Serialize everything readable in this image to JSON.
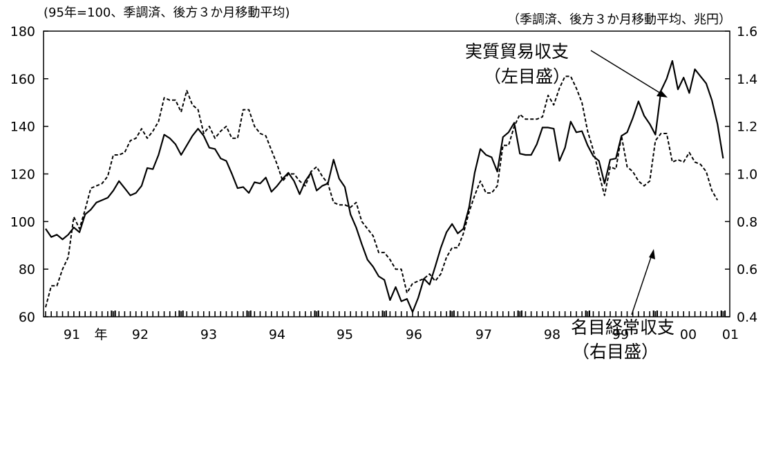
{
  "chart_data": {
    "type": "line",
    "left_axis_note": "(95年=100、季調済、後方３か月移動平均)",
    "right_axis_note": "（季調済、後方３か月移動平均、兆円）",
    "left_ticks": [
      "180",
      "160",
      "140",
      "120",
      "100",
      "80",
      "60"
    ],
    "right_ticks": [
      "1.6",
      "1.4",
      "1.2",
      "1.0",
      "0.8",
      "0.6",
      "0.4"
    ],
    "x_labels": [
      "91",
      "年",
      "92",
      "93",
      "94",
      "95",
      "96",
      "97",
      "98",
      "99",
      "00",
      "01"
    ],
    "y_left_range": [
      60,
      180
    ],
    "y_right_range": [
      0.4,
      1.6
    ],
    "grid": false,
    "series": [
      {
        "name": "実質貿易収支（左目盛）",
        "axis": "left",
        "style": "solid",
        "values": [
          97,
          93.5,
          94.5,
          92.5,
          94.5,
          97.5,
          95.5,
          103,
          105,
          108,
          109,
          110,
          113,
          117,
          114,
          111,
          112,
          115,
          122.5,
          122,
          128,
          136.5,
          135,
          132.5,
          128,
          132,
          136,
          139,
          136,
          131,
          130.5,
          126.5,
          125.5,
          120,
          114,
          114.5,
          112,
          116.5,
          116,
          118.5,
          112.5,
          115,
          118,
          120.5,
          117,
          111.5,
          117,
          120.5,
          113,
          115,
          116,
          126,
          118,
          114.5,
          103,
          97.5,
          90.5,
          84,
          81,
          77,
          75.5,
          67,
          72.5,
          66.5,
          67.5,
          62,
          68,
          76,
          73.5,
          81,
          89,
          95.5,
          99,
          95,
          97,
          106,
          120.5,
          130.5,
          128,
          127,
          121,
          135.5,
          137.5,
          141.5,
          128.5,
          128,
          128,
          132.5,
          139.5,
          139.5,
          139,
          125.5,
          131,
          142,
          137.5,
          138,
          132,
          127.5,
          125.5,
          116,
          126,
          126.5,
          136,
          137.5,
          143.5,
          150.5,
          144.5,
          141,
          136.5,
          155,
          160,
          167.5,
          155.5,
          160.5,
          154,
          164,
          161,
          158,
          151,
          141,
          126.5
        ]
      },
      {
        "name": "名目経常収支（右目盛）",
        "axis": "right",
        "style": "dotted",
        "values": [
          0.44,
          0.53,
          0.53,
          0.6,
          0.65,
          0.82,
          0.77,
          0.85,
          0.94,
          0.95,
          0.96,
          0.99,
          1.08,
          1.08,
          1.09,
          1.14,
          1.15,
          1.19,
          1.15,
          1.18,
          1.22,
          1.32,
          1.31,
          1.31,
          1.26,
          1.35,
          1.29,
          1.27,
          1.17,
          1.2,
          1.15,
          1.18,
          1.2,
          1.15,
          1.15,
          1.27,
          1.27,
          1.2,
          1.17,
          1.16,
          1.1,
          1.04,
          0.97,
          1.0,
          1.0,
          0.97,
          0.95,
          1.01,
          1.03,
          0.99,
          0.96,
          0.88,
          0.87,
          0.87,
          0.86,
          0.88,
          0.8,
          0.77,
          0.74,
          0.67,
          0.67,
          0.64,
          0.6,
          0.6,
          0.5,
          0.54,
          0.55,
          0.56,
          0.58,
          0.55,
          0.58,
          0.65,
          0.69,
          0.69,
          0.75,
          0.84,
          0.91,
          0.97,
          0.92,
          0.92,
          0.95,
          1.12,
          1.12,
          1.2,
          1.25,
          1.23,
          1.23,
          1.23,
          1.24,
          1.33,
          1.29,
          1.36,
          1.41,
          1.41,
          1.36,
          1.3,
          1.18,
          1.1,
          1.0,
          0.91,
          1.03,
          1.02,
          1.16,
          1.03,
          1.01,
          0.97,
          0.95,
          0.97,
          1.14,
          1.17,
          1.17,
          1.05,
          1.06,
          1.05,
          1.09,
          1.05,
          1.04,
          1.01,
          0.93,
          0.89
        ]
      }
    ],
    "annotations": [
      {
        "lines": [
          "実質貿易収支",
          "（左目盛）"
        ]
      },
      {
        "lines": [
          "名目経常収支",
          "（右目盛）"
        ]
      }
    ]
  }
}
